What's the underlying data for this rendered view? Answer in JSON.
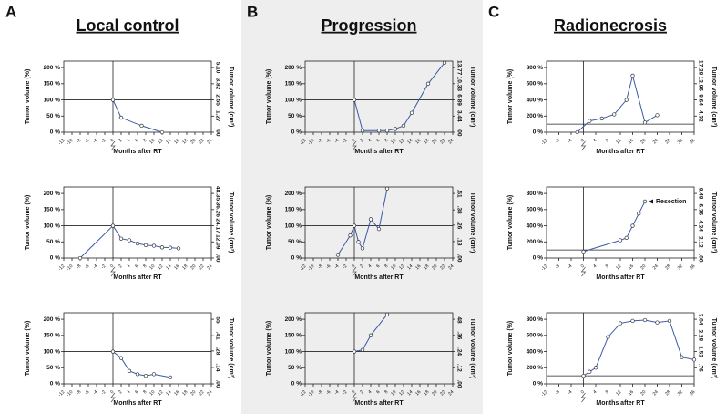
{
  "panels": [
    {
      "letter": "A",
      "title": "Local control"
    },
    {
      "letter": "B",
      "title": "Progression"
    },
    {
      "letter": "C",
      "title": "Radionecrosis"
    }
  ],
  "chart_data": [
    {
      "type": "line",
      "xlabel": "Months after RT",
      "ylabel": "Tumor volume (%)",
      "y2label": "Tumor volume (cm³)",
      "color": "#3a5aa8",
      "hline": 100,
      "vline": 0,
      "x": [
        0,
        2,
        7,
        12
      ],
      "values": [
        100,
        45,
        20,
        0
      ],
      "xlim": [
        -12,
        24
      ],
      "xticks": [
        -12,
        -10,
        -8,
        -6,
        -4,
        -2,
        0,
        2,
        4,
        6,
        8,
        10,
        12,
        14,
        16,
        18,
        20,
        22,
        24
      ],
      "ylim": [
        0,
        220
      ],
      "yticks": [
        {
          "value": 0,
          "label": "0 %"
        },
        {
          "value": 50,
          "label": "50 %"
        },
        {
          "value": 100,
          "label": "100 %"
        },
        {
          "value": 150,
          "label": "150 %"
        },
        {
          "value": 200,
          "label": "200 %"
        }
      ],
      "y2lim": [
        0,
        5.61
      ],
      "y2ticks": [
        {
          "value": 0,
          "label": ".00"
        },
        1.27,
        2.55,
        3.82,
        {
          "value": 5.1,
          "label": "5.10"
        }
      ]
    },
    {
      "type": "line",
      "xlabel": "Months after RT",
      "ylabel": "Tumor volume (%)",
      "y2label": "Tumor volume (cm³)",
      "color": "#3a5aa8",
      "hline": 100,
      "vline": 0,
      "x": [
        -8,
        0,
        2,
        4,
        6,
        8,
        10,
        12,
        14,
        16
      ],
      "values": [
        0,
        100,
        60,
        55,
        45,
        40,
        38,
        33,
        32,
        30
      ],
      "xlim": [
        -12,
        24
      ],
      "xticks": [
        -12,
        -10,
        -8,
        -6,
        -4,
        -2,
        0,
        2,
        4,
        6,
        8,
        10,
        12,
        14,
        16,
        18,
        20,
        22,
        24
      ],
      "ylim": [
        0,
        220
      ],
      "yticks": [
        {
          "value": 0,
          "label": "0 %"
        },
        {
          "value": 50,
          "label": "50 %"
        },
        {
          "value": 100,
          "label": "100 %"
        },
        {
          "value": 150,
          "label": "150 %"
        },
        {
          "value": 200,
          "label": "200 %"
        }
      ],
      "y2lim": [
        0,
        53.185
      ],
      "y2ticks": [
        {
          "value": 0,
          "label": ".00"
        },
        12.09,
        24.17,
        36.26,
        48.35
      ]
    },
    {
      "type": "line",
      "xlabel": "Months after RT",
      "ylabel": "Tumor volume (%)",
      "y2label": "Tumor volume (cm³)",
      "color": "#3a5aa8",
      "hline": 100,
      "vline": 0,
      "x": [
        0,
        2,
        4,
        6,
        8,
        10,
        14
      ],
      "values": [
        100,
        80,
        40,
        30,
        25,
        30,
        20
      ],
      "xlim": [
        -12,
        24
      ],
      "xticks": [
        -12,
        -10,
        -8,
        -6,
        -4,
        -2,
        0,
        2,
        4,
        6,
        8,
        10,
        12,
        14,
        16,
        18,
        20,
        22,
        24
      ],
      "ylim": [
        0,
        220
      ],
      "yticks": [
        {
          "value": 0,
          "label": "0 %"
        },
        {
          "value": 50,
          "label": "50 %"
        },
        {
          "value": 100,
          "label": "100 %"
        },
        {
          "value": 150,
          "label": "150 %"
        },
        {
          "value": 200,
          "label": "200 %"
        }
      ],
      "y2lim": [
        0,
        0.605
      ],
      "y2ticks": [
        {
          "value": 0,
          "label": ".00"
        },
        {
          "value": 0.14,
          "label": ".14"
        },
        {
          "value": 0.28,
          "label": ".28"
        },
        {
          "value": 0.41,
          "label": ".41"
        },
        {
          "value": 0.55,
          "label": ".55"
        }
      ]
    },
    {
      "type": "line",
      "xlabel": "Months after RT",
      "ylabel": "Tumor volume (%)",
      "y2label": "Tumor volume (cm³)",
      "color": "#3a5aa8",
      "hline": 100,
      "vline": 0,
      "x": [
        0,
        2,
        6,
        8,
        10,
        12,
        14,
        18,
        22
      ],
      "values": [
        100,
        5,
        5,
        5,
        10,
        20,
        60,
        150,
        215
      ],
      "xlim": [
        -12,
        24
      ],
      "xticks": [
        -12,
        -10,
        -8,
        -6,
        -4,
        -2,
        0,
        2,
        4,
        6,
        8,
        10,
        12,
        14,
        16,
        18,
        20,
        22,
        24
      ],
      "ylim": [
        0,
        220
      ],
      "yticks": [
        {
          "value": 0,
          "label": "0 %"
        },
        {
          "value": 50,
          "label": "50 %"
        },
        {
          "value": 100,
          "label": "100 %"
        },
        {
          "value": 150,
          "label": "150 %"
        },
        {
          "value": 200,
          "label": "200 %"
        }
      ],
      "y2lim": [
        0,
        15.147
      ],
      "y2ticks": [
        {
          "value": 0,
          "label": ".00"
        },
        3.44,
        6.89,
        10.33,
        13.77
      ]
    },
    {
      "type": "line",
      "xlabel": "Months after RT",
      "ylabel": "Tumor volume (%)",
      "y2label": "Tumor volume (cm³)",
      "color": "#3a5aa8",
      "hline": 100,
      "vline": 0,
      "x": [
        -4,
        -1,
        0,
        1,
        2,
        4,
        6,
        8
      ],
      "values": [
        10,
        70,
        100,
        50,
        30,
        120,
        90,
        215
      ],
      "xlim": [
        -12,
        24
      ],
      "xticks": [
        -12,
        -10,
        -8,
        -6,
        -4,
        -2,
        0,
        2,
        4,
        6,
        8,
        10,
        12,
        14,
        16,
        18,
        20,
        22,
        24
      ],
      "ylim": [
        0,
        220
      ],
      "yticks": [
        {
          "value": 0,
          "label": "0 %"
        },
        {
          "value": 50,
          "label": "50 %"
        },
        {
          "value": 100,
          "label": "100 %"
        },
        {
          "value": 150,
          "label": "150 %"
        },
        {
          "value": 200,
          "label": "200 %"
        }
      ],
      "y2lim": [
        0,
        0.561
      ],
      "y2ticks": [
        {
          "value": 0,
          "label": ".00"
        },
        {
          "value": 0.13,
          "label": ".13"
        },
        {
          "value": 0.26,
          "label": ".26"
        },
        {
          "value": 0.38,
          "label": ".38"
        },
        {
          "value": 0.51,
          "label": ".51"
        }
      ]
    },
    {
      "type": "line",
      "xlabel": "Months after RT",
      "ylabel": "Tumor volume (%)",
      "y2label": "Tumor volume (cm³)",
      "color": "#3a5aa8",
      "hline": 100,
      "vline": 0,
      "x": [
        0,
        2,
        4,
        8
      ],
      "values": [
        100,
        105,
        150,
        215
      ],
      "xlim": [
        -12,
        24
      ],
      "xticks": [
        -12,
        -10,
        -8,
        -6,
        -4,
        -2,
        0,
        2,
        4,
        6,
        8,
        10,
        12,
        14,
        16,
        18,
        20,
        22,
        24
      ],
      "ylim": [
        0,
        220
      ],
      "yticks": [
        {
          "value": 0,
          "label": "0 %"
        },
        {
          "value": 50,
          "label": "50 %"
        },
        {
          "value": 100,
          "label": "100 %"
        },
        {
          "value": 150,
          "label": "150 %"
        },
        {
          "value": 200,
          "label": "200 %"
        }
      ],
      "y2lim": [
        0,
        0.528
      ],
      "y2ticks": [
        {
          "value": 0,
          "label": ".00"
        },
        {
          "value": 0.12,
          "label": ".12"
        },
        {
          "value": 0.24,
          "label": ".24"
        },
        {
          "value": 0.36,
          "label": ".36"
        },
        {
          "value": 0.48,
          "label": ".48"
        }
      ]
    },
    {
      "type": "line",
      "xlabel": "Months after RT",
      "ylabel": "Tumor volume (%)",
      "y2label": "Tumor volume (cm³)",
      "color": "#3a5aa8",
      "hline": 100,
      "vline": 0,
      "x": [
        -2,
        2,
        6,
        10,
        14,
        16,
        20,
        24
      ],
      "values": [
        0,
        140,
        170,
        220,
        400,
        700,
        120,
        210
      ],
      "xlim": [
        -12,
        36
      ],
      "xticks": [
        -12,
        -8,
        -4,
        0,
        4,
        8,
        12,
        16,
        20,
        24,
        28,
        32,
        36
      ],
      "ylim": [
        0,
        880
      ],
      "yticks": [
        {
          "value": 0,
          "label": "0 %"
        },
        {
          "value": 200,
          "label": "200 %"
        },
        {
          "value": 400,
          "label": "400 %"
        },
        {
          "value": 600,
          "label": "600 %"
        },
        {
          "value": 800,
          "label": "800 %"
        }
      ],
      "y2lim": [
        0,
        19.008
      ],
      "y2ticks": [
        4.32,
        8.64,
        12.96,
        17.28
      ]
    },
    {
      "type": "line",
      "xlabel": "Months after RT",
      "ylabel": "Tumor volume (%)",
      "y2label": "Tumor volume (cm³)",
      "color": "#3a5aa8",
      "hline": 100,
      "vline": 0,
      "annotation": "Resection",
      "x": [
        0,
        12,
        14,
        16,
        18,
        20
      ],
      "values": [
        80,
        220,
        250,
        400,
        550,
        700
      ],
      "xlim": [
        -12,
        36
      ],
      "xticks": [
        -12,
        -8,
        -4,
        0,
        4,
        8,
        12,
        16,
        20,
        24,
        28,
        32,
        36
      ],
      "ylim": [
        0,
        880
      ],
      "yticks": [
        {
          "value": 0,
          "label": "0 %"
        },
        {
          "value": 200,
          "label": "200 %"
        },
        {
          "value": 400,
          "label": "400 %"
        },
        {
          "value": 600,
          "label": "600 %"
        },
        {
          "value": 800,
          "label": "800 %"
        }
      ],
      "y2lim": [
        0,
        9.328
      ],
      "y2ticks": [
        {
          "value": 0,
          "label": ".00"
        },
        2.12,
        4.24,
        6.36,
        8.48
      ]
    },
    {
      "type": "line",
      "xlabel": "Months after RT",
      "ylabel": "Tumor volume (%)",
      "y2label": "Tumor volume (cm³)",
      "color": "#3a5aa8",
      "hline": 100,
      "vline": 0,
      "x": [
        0,
        2,
        4,
        8,
        12,
        16,
        20,
        24,
        28,
        32,
        36
      ],
      "values": [
        100,
        150,
        200,
        580,
        750,
        780,
        790,
        760,
        780,
        330,
        300
      ],
      "xlim": [
        -12,
        36
      ],
      "xticks": [
        -12,
        -8,
        -4,
        0,
        4,
        8,
        12,
        16,
        20,
        24,
        28,
        32,
        36
      ],
      "ylim": [
        0,
        880
      ],
      "yticks": [
        {
          "value": 0,
          "label": "0 %"
        },
        {
          "value": 200,
          "label": "200 %"
        },
        {
          "value": 400,
          "label": "400 %"
        },
        {
          "value": 600,
          "label": "600 %"
        },
        {
          "value": 800,
          "label": "800 %"
        }
      ],
      "y2lim": [
        0,
        3.344
      ],
      "y2ticks": [
        {
          "value": 0.76,
          "label": ".76"
        },
        1.52,
        2.28,
        3.04
      ]
    }
  ]
}
